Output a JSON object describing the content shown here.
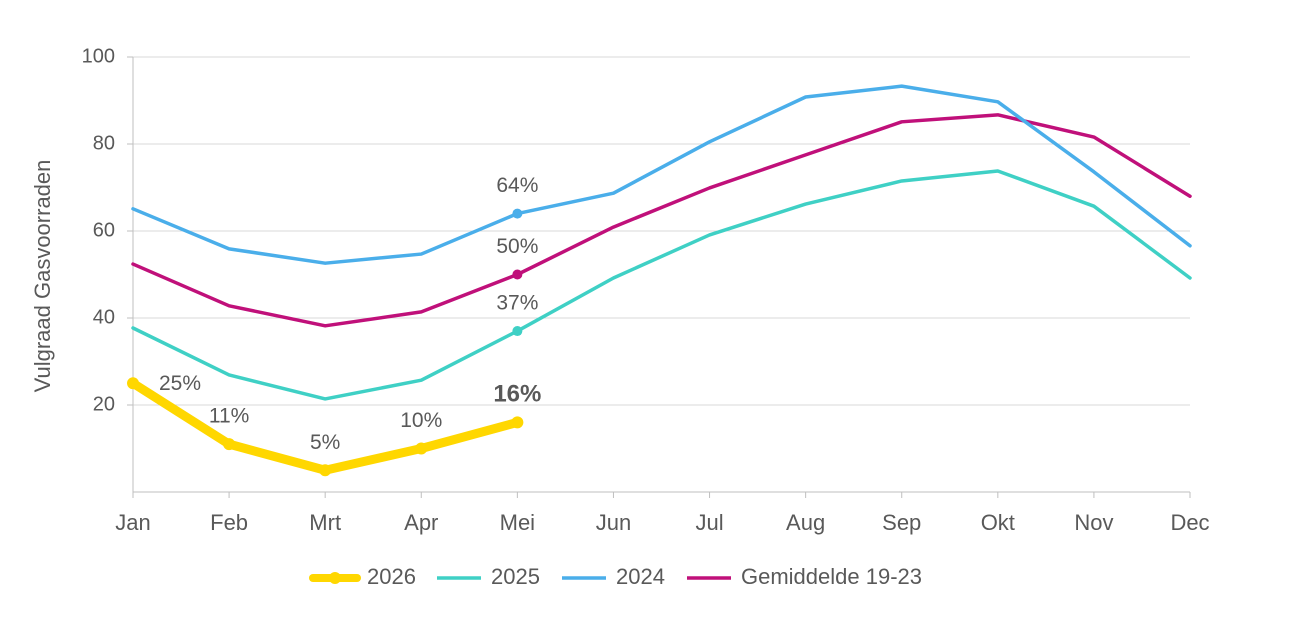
{
  "chart_data": {
    "type": "line",
    "y_label": "Vulgraad Gasvoorraden",
    "categories": [
      "Jan",
      "Feb",
      "Mrt",
      "Apr",
      "Mei",
      "Jun",
      "Jul",
      "Aug",
      "Sep",
      "Okt",
      "Nov",
      "Dec"
    ],
    "ylim": [
      0,
      100
    ],
    "yticks": [
      20,
      40,
      60,
      80,
      100
    ],
    "grid": true,
    "legend": "bottom",
    "series": [
      {
        "name": "2026",
        "color": "#ffd700",
        "values": [
          25,
          11,
          5,
          10,
          16,
          null,
          null,
          null,
          null,
          null,
          null,
          null
        ],
        "value_labels": [
          "25%",
          "11%",
          "5%",
          "10%",
          "16%",
          null,
          null,
          null,
          null,
          null,
          null,
          null
        ]
      },
      {
        "name": "2025",
        "color": "#3fd0c5",
        "values": [
          37.7,
          26.9,
          21.4,
          25.7,
          37,
          49.2,
          59.1,
          66.2,
          71.5,
          73.8,
          65.7,
          49.2
        ],
        "value_labels": [
          null,
          null,
          null,
          null,
          "37%",
          null,
          null,
          null,
          null,
          null,
          null,
          null
        ]
      },
      {
        "name": "2024",
        "color": "#4aaeea",
        "values": [
          65.1,
          55.9,
          52.6,
          54.7,
          64,
          68.7,
          80.5,
          90.8,
          93.3,
          89.7,
          73.6,
          56.6
        ],
        "value_labels": [
          null,
          null,
          null,
          null,
          "64%",
          null,
          null,
          null,
          null,
          null,
          null,
          null
        ]
      },
      {
        "name": "Gemiddelde 19-23",
        "color": "#c0107a",
        "values": [
          52.4,
          42.8,
          38.2,
          41.4,
          50,
          60.9,
          69.9,
          77.5,
          85.1,
          86.7,
          81.6,
          68
        ],
        "value_labels": [
          null,
          null,
          null,
          null,
          "50%",
          null,
          null,
          null,
          null,
          null,
          null,
          null
        ]
      }
    ]
  }
}
